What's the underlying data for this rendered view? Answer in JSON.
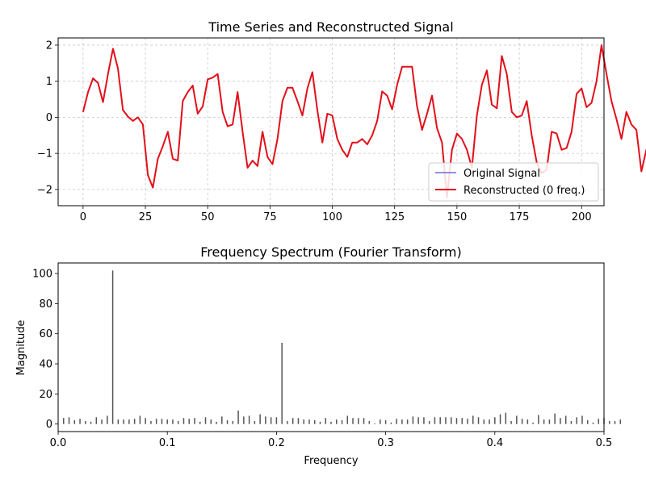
{
  "chart_data": [
    {
      "type": "line",
      "title": "Time Series and Reconstructed Signal",
      "xlabel": "",
      "ylabel": "",
      "xlim": [
        -10,
        209
      ],
      "ylim": [
        -2.45,
        2.2
      ],
      "grid": true,
      "legend_position": "lower-right",
      "x_ticks": [
        0,
        25,
        50,
        75,
        100,
        125,
        150,
        175,
        200
      ],
      "y_ticks": [
        -2,
        -1,
        0,
        1,
        2
      ],
      "x_step": 2,
      "series": [
        {
          "name": "Original Signal",
          "color": "#6b6bd6",
          "values": [
            0.15,
            0.7,
            1.08,
            0.95,
            0.42,
            1.2,
            1.9,
            1.35,
            0.2,
            0.02,
            -0.1,
            0.0,
            -0.2,
            -1.6,
            -1.95,
            -1.15,
            -0.8,
            -0.4,
            -1.15,
            -1.2,
            0.45,
            0.7,
            0.88,
            0.1,
            0.3,
            1.05,
            1.1,
            1.2,
            0.15,
            -0.25,
            -0.2,
            0.7,
            -0.4,
            -1.4,
            -1.2,
            -1.35,
            -0.4,
            -1.1,
            -1.3,
            -0.6,
            0.45,
            0.82,
            0.82,
            0.45,
            0.05,
            0.8,
            1.25,
            0.2,
            -0.7,
            0.1,
            0.05,
            -0.6,
            -0.9,
            -1.1,
            -0.7,
            -0.7,
            -0.6,
            -0.75,
            -0.5,
            -0.1,
            0.72,
            0.6,
            0.22,
            0.9,
            1.4,
            1.4,
            1.4,
            0.3,
            -0.35,
            0.1,
            0.6,
            -0.3,
            -0.7,
            -2.22,
            -0.9,
            -0.45,
            -0.6,
            -0.9,
            -1.4,
            0.05,
            0.9,
            1.3,
            0.35,
            0.25,
            1.7,
            1.2,
            0.15,
            0.0,
            0.05,
            0.45,
            -0.5,
            -1.25,
            -1.55,
            -1.45,
            -0.4,
            -0.45,
            -0.9,
            -0.85,
            -0.4,
            0.65,
            0.8,
            0.28,
            0.4,
            1.0,
            2.0,
            1.2,
            0.45,
            -0.05,
            -0.6,
            0.15,
            -0.2,
            -0.35,
            -1.5,
            -0.9,
            -0.5,
            -0.95,
            -0.55,
            -0.6,
            0.2,
            0.4,
            1.3,
            0.1,
            0.6,
            1.65,
            1.1,
            0.6,
            -0.3,
            -0.45,
            0.2,
            -0.6,
            -0.95,
            -1.7,
            -0.55,
            -0.7,
            -0.6,
            -0.6,
            -1.15,
            0.25,
            1.18,
            0.4,
            0.55,
            0.55,
            1.22,
            1.05,
            0.75,
            0.35,
            -0.1,
            0.08,
            0.25,
            -0.55,
            -1.0,
            -1.45,
            -0.2,
            -0.05,
            -1.7,
            -1.15,
            -0.6,
            -0.35,
            1.0,
            1.22,
            0.25,
            0.8,
            1.15,
            1.65,
            1.65,
            0.25,
            -0.4,
            -0.2,
            -0.05,
            -0.45,
            -1.0,
            -1.2,
            -0.6,
            -0.35,
            -0.05,
            -1.0,
            -0.05,
            0.2,
            0.5,
            0.55,
            0.65,
            0.45,
            1.15,
            1.55,
            1.1,
            0.05,
            -0.65,
            -0.2,
            0.42,
            -0.55,
            -1.48,
            -1.4,
            -0.9,
            -0.75,
            -0.5,
            -0.85,
            -1.12
          ]
        },
        {
          "name": "Reconstructed (0 freq.)",
          "color": "#e3101a",
          "values": [
            0.15,
            0.7,
            1.08,
            0.95,
            0.42,
            1.2,
            1.9,
            1.35,
            0.2,
            0.02,
            -0.1,
            0.0,
            -0.2,
            -1.6,
            -1.95,
            -1.15,
            -0.8,
            -0.4,
            -1.15,
            -1.2,
            0.45,
            0.7,
            0.88,
            0.1,
            0.3,
            1.05,
            1.1,
            1.2,
            0.15,
            -0.25,
            -0.2,
            0.7,
            -0.4,
            -1.4,
            -1.2,
            -1.35,
            -0.4,
            -1.1,
            -1.3,
            -0.6,
            0.45,
            0.82,
            0.82,
            0.45,
            0.05,
            0.8,
            1.25,
            0.2,
            -0.7,
            0.1,
            0.05,
            -0.6,
            -0.9,
            -1.1,
            -0.7,
            -0.7,
            -0.6,
            -0.75,
            -0.5,
            -0.1,
            0.72,
            0.6,
            0.22,
            0.9,
            1.4,
            1.4,
            1.4,
            0.3,
            -0.35,
            0.1,
            0.6,
            -0.3,
            -0.7,
            -2.22,
            -0.9,
            -0.45,
            -0.6,
            -0.9,
            -1.4,
            0.05,
            0.9,
            1.3,
            0.35,
            0.25,
            1.7,
            1.2,
            0.15,
            0.0,
            0.05,
            0.45,
            -0.5,
            -1.25,
            -1.55,
            -1.45,
            -0.4,
            -0.45,
            -0.9,
            -0.85,
            -0.4,
            0.65,
            0.8,
            0.28,
            0.4,
            1.0,
            2.0,
            1.2,
            0.45,
            -0.05,
            -0.6,
            0.15,
            -0.2,
            -0.35,
            -1.5,
            -0.9,
            -0.5,
            -0.95,
            -0.55,
            -0.6,
            0.2,
            0.4,
            1.3,
            0.1,
            0.6,
            1.65,
            1.1,
            0.6,
            -0.3,
            -0.45,
            0.2,
            -0.6,
            -0.95,
            -1.7,
            -0.55,
            -0.7,
            -0.6,
            -0.6,
            -1.15,
            0.25,
            1.18,
            0.4,
            0.55,
            0.55,
            1.22,
            1.05,
            0.75,
            0.35,
            -0.1,
            0.08,
            0.25,
            -0.55,
            -1.0,
            -1.45,
            -0.2,
            -0.05,
            -1.7,
            -1.15,
            -0.6,
            -0.35,
            1.0,
            1.22,
            0.25,
            0.8,
            1.15,
            1.65,
            1.65,
            0.25,
            -0.4,
            -0.2,
            -0.05,
            -0.45,
            -1.0,
            -1.2,
            -0.6,
            -0.35,
            -0.05,
            -1.0,
            -0.05,
            0.2,
            0.5,
            0.55,
            0.65,
            0.45,
            1.15,
            1.55,
            1.1,
            0.05,
            -0.65,
            -0.2,
            0.42,
            -0.55,
            -1.48,
            -1.4,
            -0.9,
            -0.75,
            -0.5,
            -0.85,
            -1.12
          ]
        }
      ]
    },
    {
      "type": "bar",
      "title": "Frequency Spectrum (Fourier Transform)",
      "xlabel": "Frequency",
      "ylabel": "Magnitude",
      "xlim": [
        0,
        0.5
      ],
      "ylim": [
        -5,
        107
      ],
      "grid": false,
      "x_ticks": [
        0.0,
        0.1,
        0.2,
        0.3,
        0.4,
        0.5
      ],
      "x_tick_labels": [
        "0.0",
        "0.1",
        "0.2",
        "0.3",
        "0.4",
        "0.5"
      ],
      "y_ticks": [
        0,
        20,
        40,
        60,
        80,
        100
      ],
      "bar_color": "#555555",
      "freq_step": 0.005,
      "magnitudes": [
        4,
        4.5,
        2.5,
        3.5,
        2,
        1.5,
        4.5,
        3,
        5.5,
        102,
        3,
        3,
        3,
        3.5,
        5.5,
        4,
        2,
        3.5,
        3.5,
        3,
        3,
        2,
        4,
        3.5,
        4,
        1.5,
        4.5,
        3,
        1.5,
        5,
        2.5,
        2,
        9,
        5,
        5.5,
        2,
        6.5,
        5,
        4.5,
        4.5,
        54,
        2,
        4,
        4,
        3,
        3,
        2.5,
        1.5,
        4,
        1.5,
        3,
        2.5,
        5.5,
        4,
        4,
        4,
        2,
        0.5,
        3,
        2.5,
        1,
        3.5,
        3,
        3,
        5,
        4.5,
        4.5,
        2,
        4.5,
        4.5,
        4.5,
        4.5,
        4,
        4,
        3.5,
        5.5,
        4.5,
        3,
        3,
        4.5,
        6.5,
        7.5,
        2,
        5.5,
        3.5,
        3,
        1,
        6,
        3,
        3,
        7,
        4,
        5.5,
        2,
        4.5,
        5.5,
        2.5,
        1,
        3.5,
        4,
        2,
        2,
        3
      ]
    }
  ]
}
